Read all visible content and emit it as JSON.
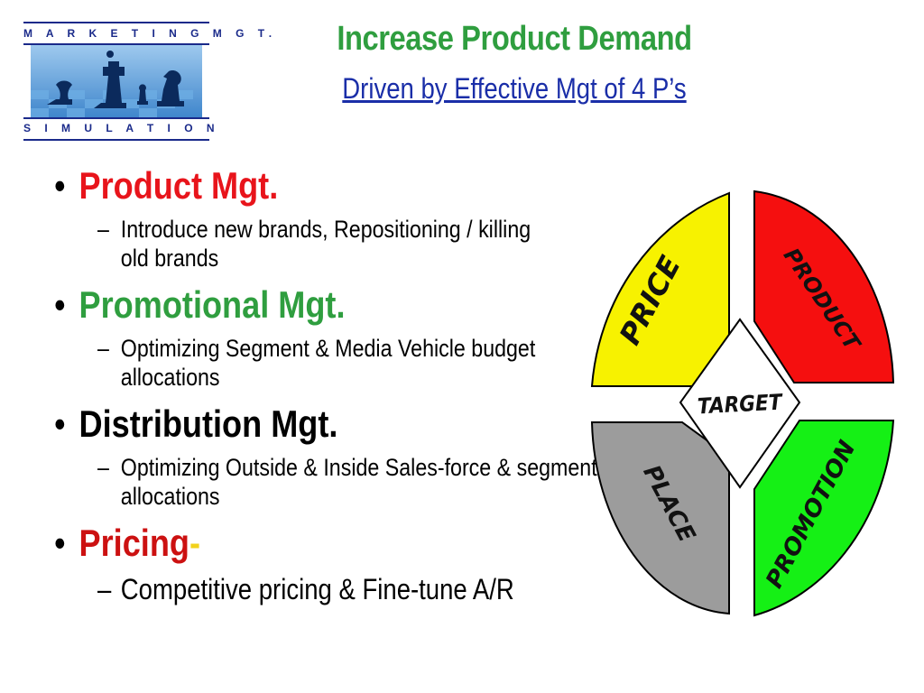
{
  "logo": {
    "top_text": "M A R K E T I N G   M G T.",
    "bottom_text": "S I M U L A T I O N"
  },
  "header": {
    "title": "Increase Product Demand",
    "subtitle": "Driven by Effective Mgt of 4 P’s"
  },
  "bullets": [
    {
      "marker": "•",
      "text": "Product Mgt.",
      "color": "#e8141b",
      "sub": [
        {
          "marker": "–",
          "text": "Introduce new brands, Repositioning / killing old brands"
        }
      ]
    },
    {
      "marker": "•",
      "text": "Promotional Mgt.",
      "color": "#2f9e3f",
      "sub": [
        {
          "marker": "–",
          "text": "Optimizing Segment & Media Vehicle budget allocations"
        }
      ]
    },
    {
      "marker": "•",
      "text": "Distribution Mgt.",
      "color": "#000000",
      "sub": [
        {
          "marker": "–",
          "text": "Optimizing Outside & Inside Sales-force & segment allocations"
        }
      ]
    },
    {
      "marker": "•",
      "text": "Pricing",
      "suffix": "-",
      "color": "#cc1111",
      "suffix_color": "#f2d21b",
      "sub": [
        {
          "marker": "–",
          "text": "Competitive pricing & Fine-tune A/R"
        }
      ]
    }
  ],
  "diagram": {
    "center": "TARGET",
    "quadrants": {
      "price": {
        "label": "PRICE",
        "color": "#f7f200"
      },
      "product": {
        "label": "PRODUCT",
        "color": "#f50f0f"
      },
      "place": {
        "label": "PLACE",
        "color": "#9c9c9c"
      },
      "promotion": {
        "label": "PROMOTION",
        "color": "#15f015"
      }
    }
  }
}
